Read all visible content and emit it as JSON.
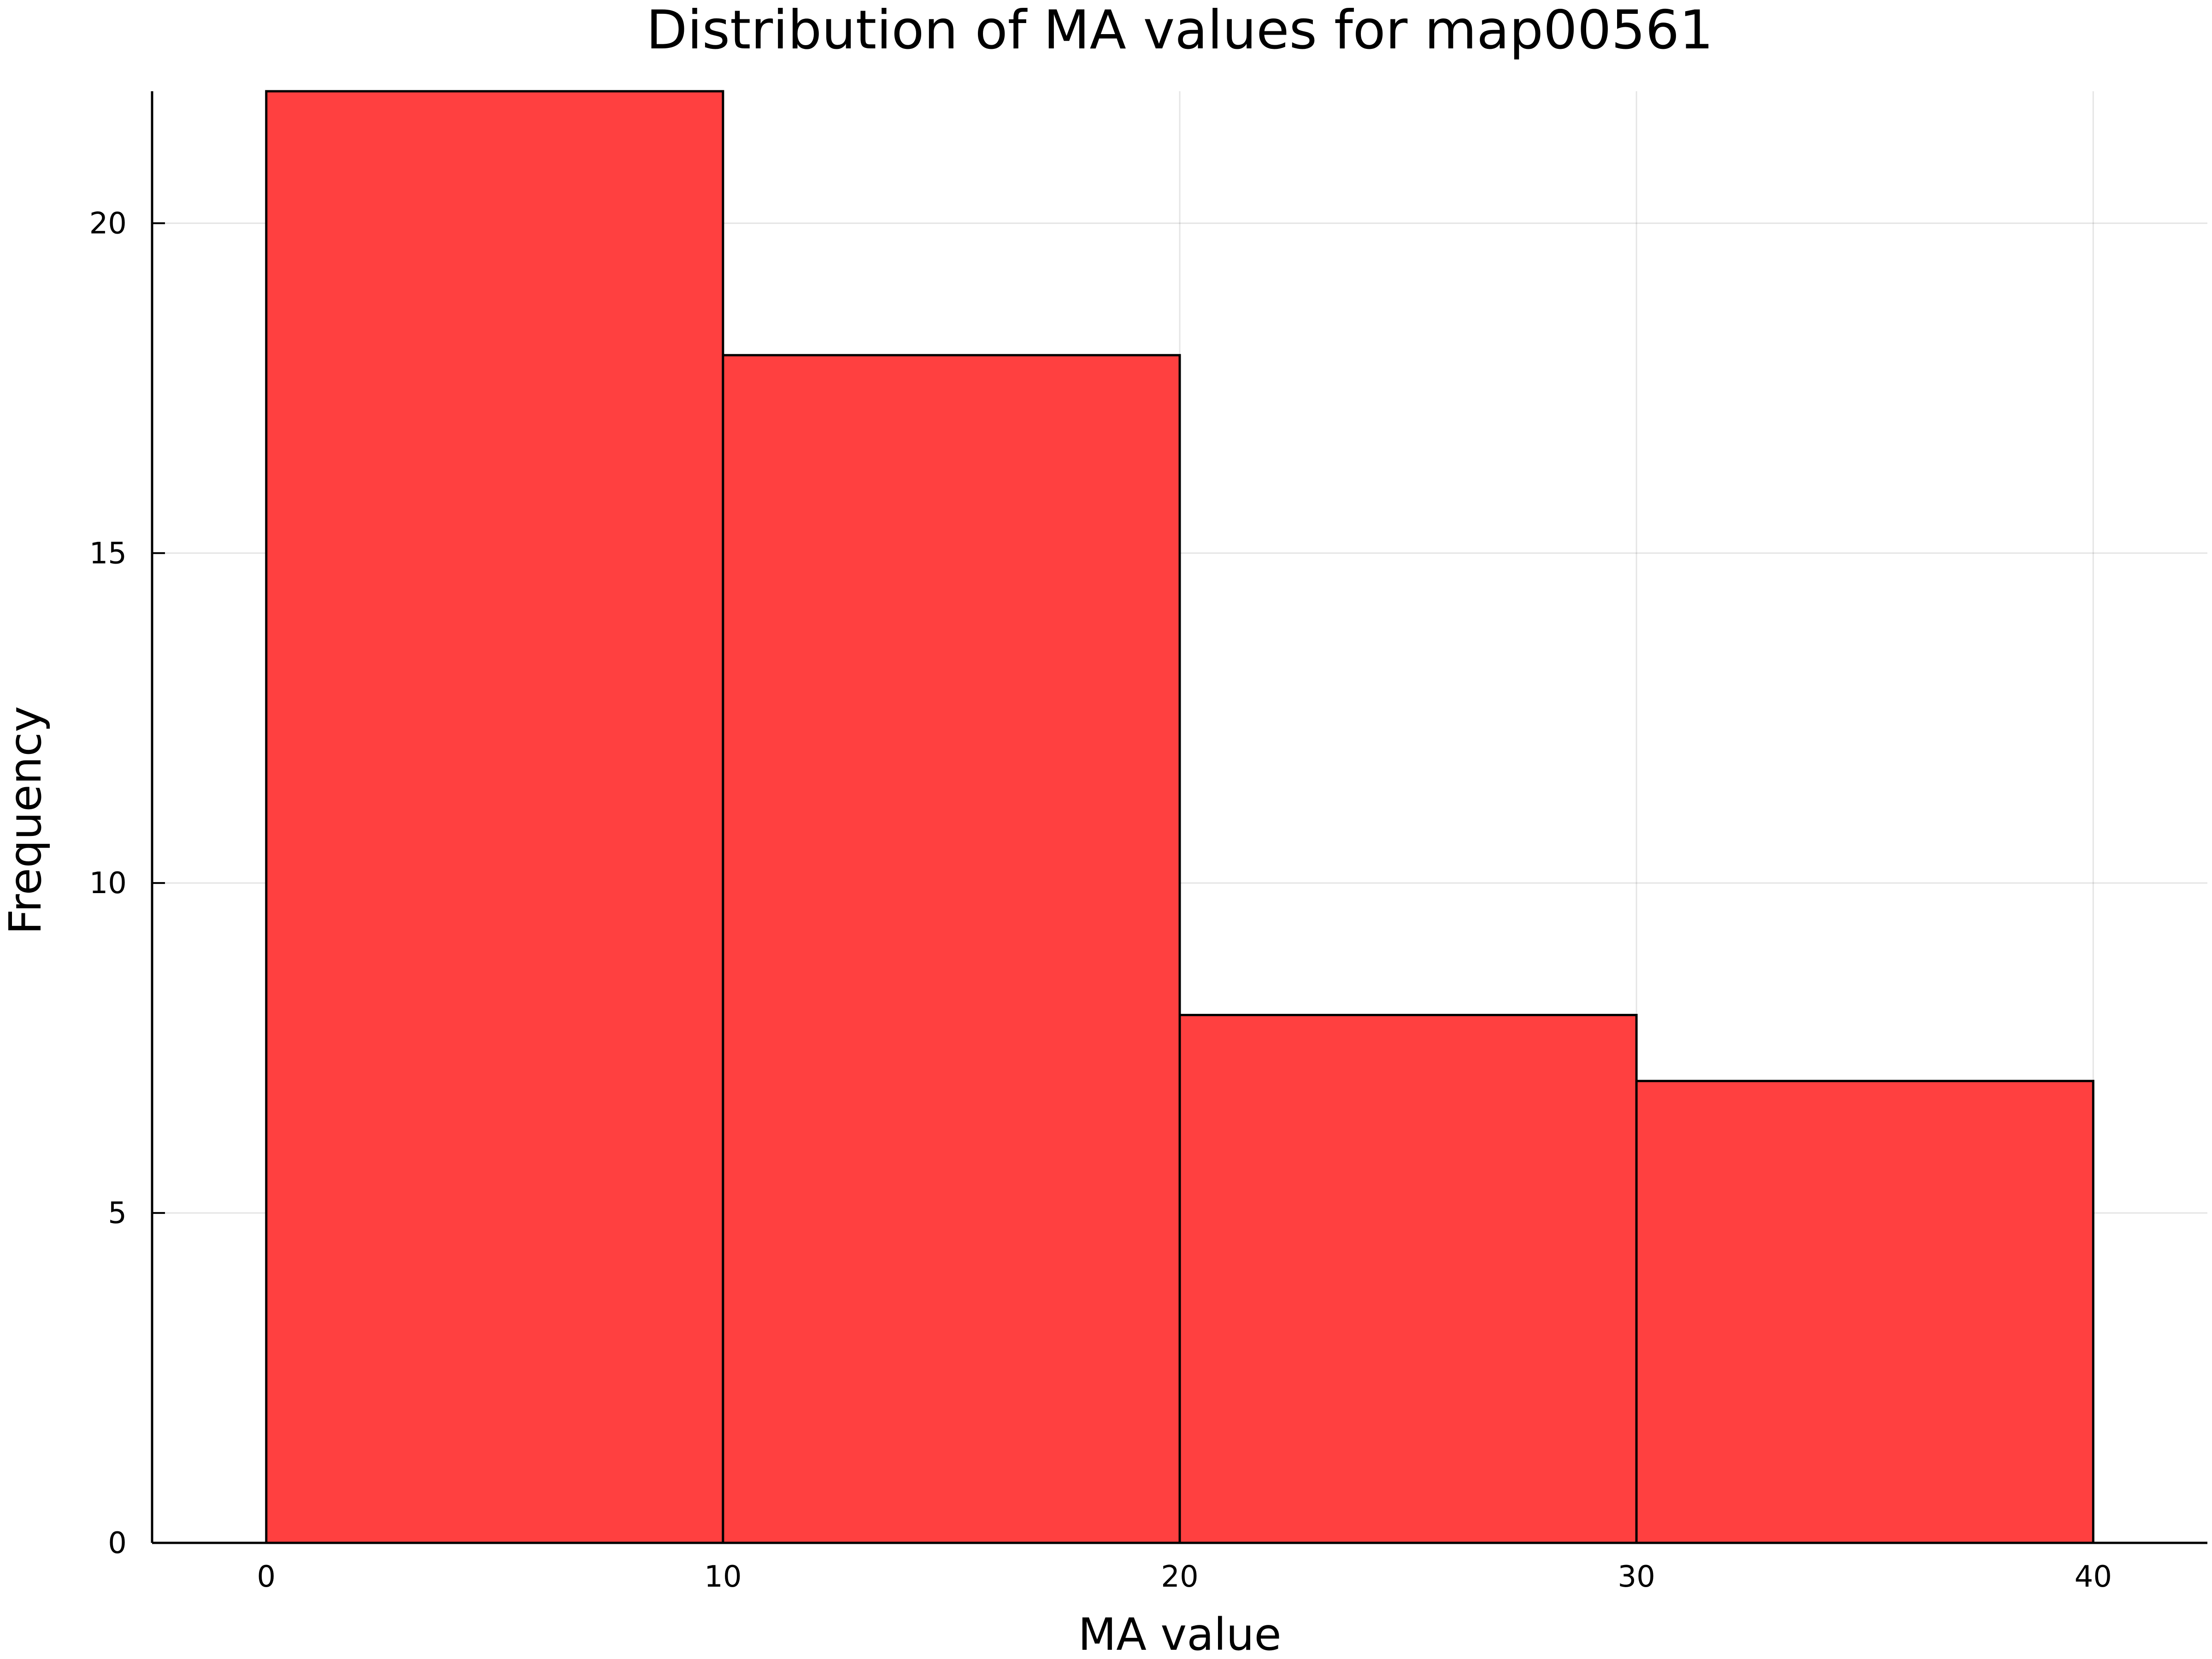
{
  "chart_data": {
    "type": "bar",
    "title": "Distribution of MA values for map00561",
    "xlabel": "MA value",
    "ylabel": "Frequency",
    "bins": [
      {
        "start": 0,
        "end": 10,
        "value": 22
      },
      {
        "start": 10,
        "end": 20,
        "value": 18
      },
      {
        "start": 20,
        "end": 30,
        "value": 8
      },
      {
        "start": 30,
        "end": 40,
        "value": 7
      }
    ],
    "xlim": [
      -2.5,
      42.5
    ],
    "ylim": [
      0,
      22
    ],
    "x_ticks": [
      0,
      10,
      20,
      30,
      40
    ],
    "y_ticks": [
      0,
      5,
      10,
      15,
      20
    ],
    "grid": true,
    "legend": false,
    "bar_color": "#ff4040",
    "bar_opacity": 1.0
  }
}
